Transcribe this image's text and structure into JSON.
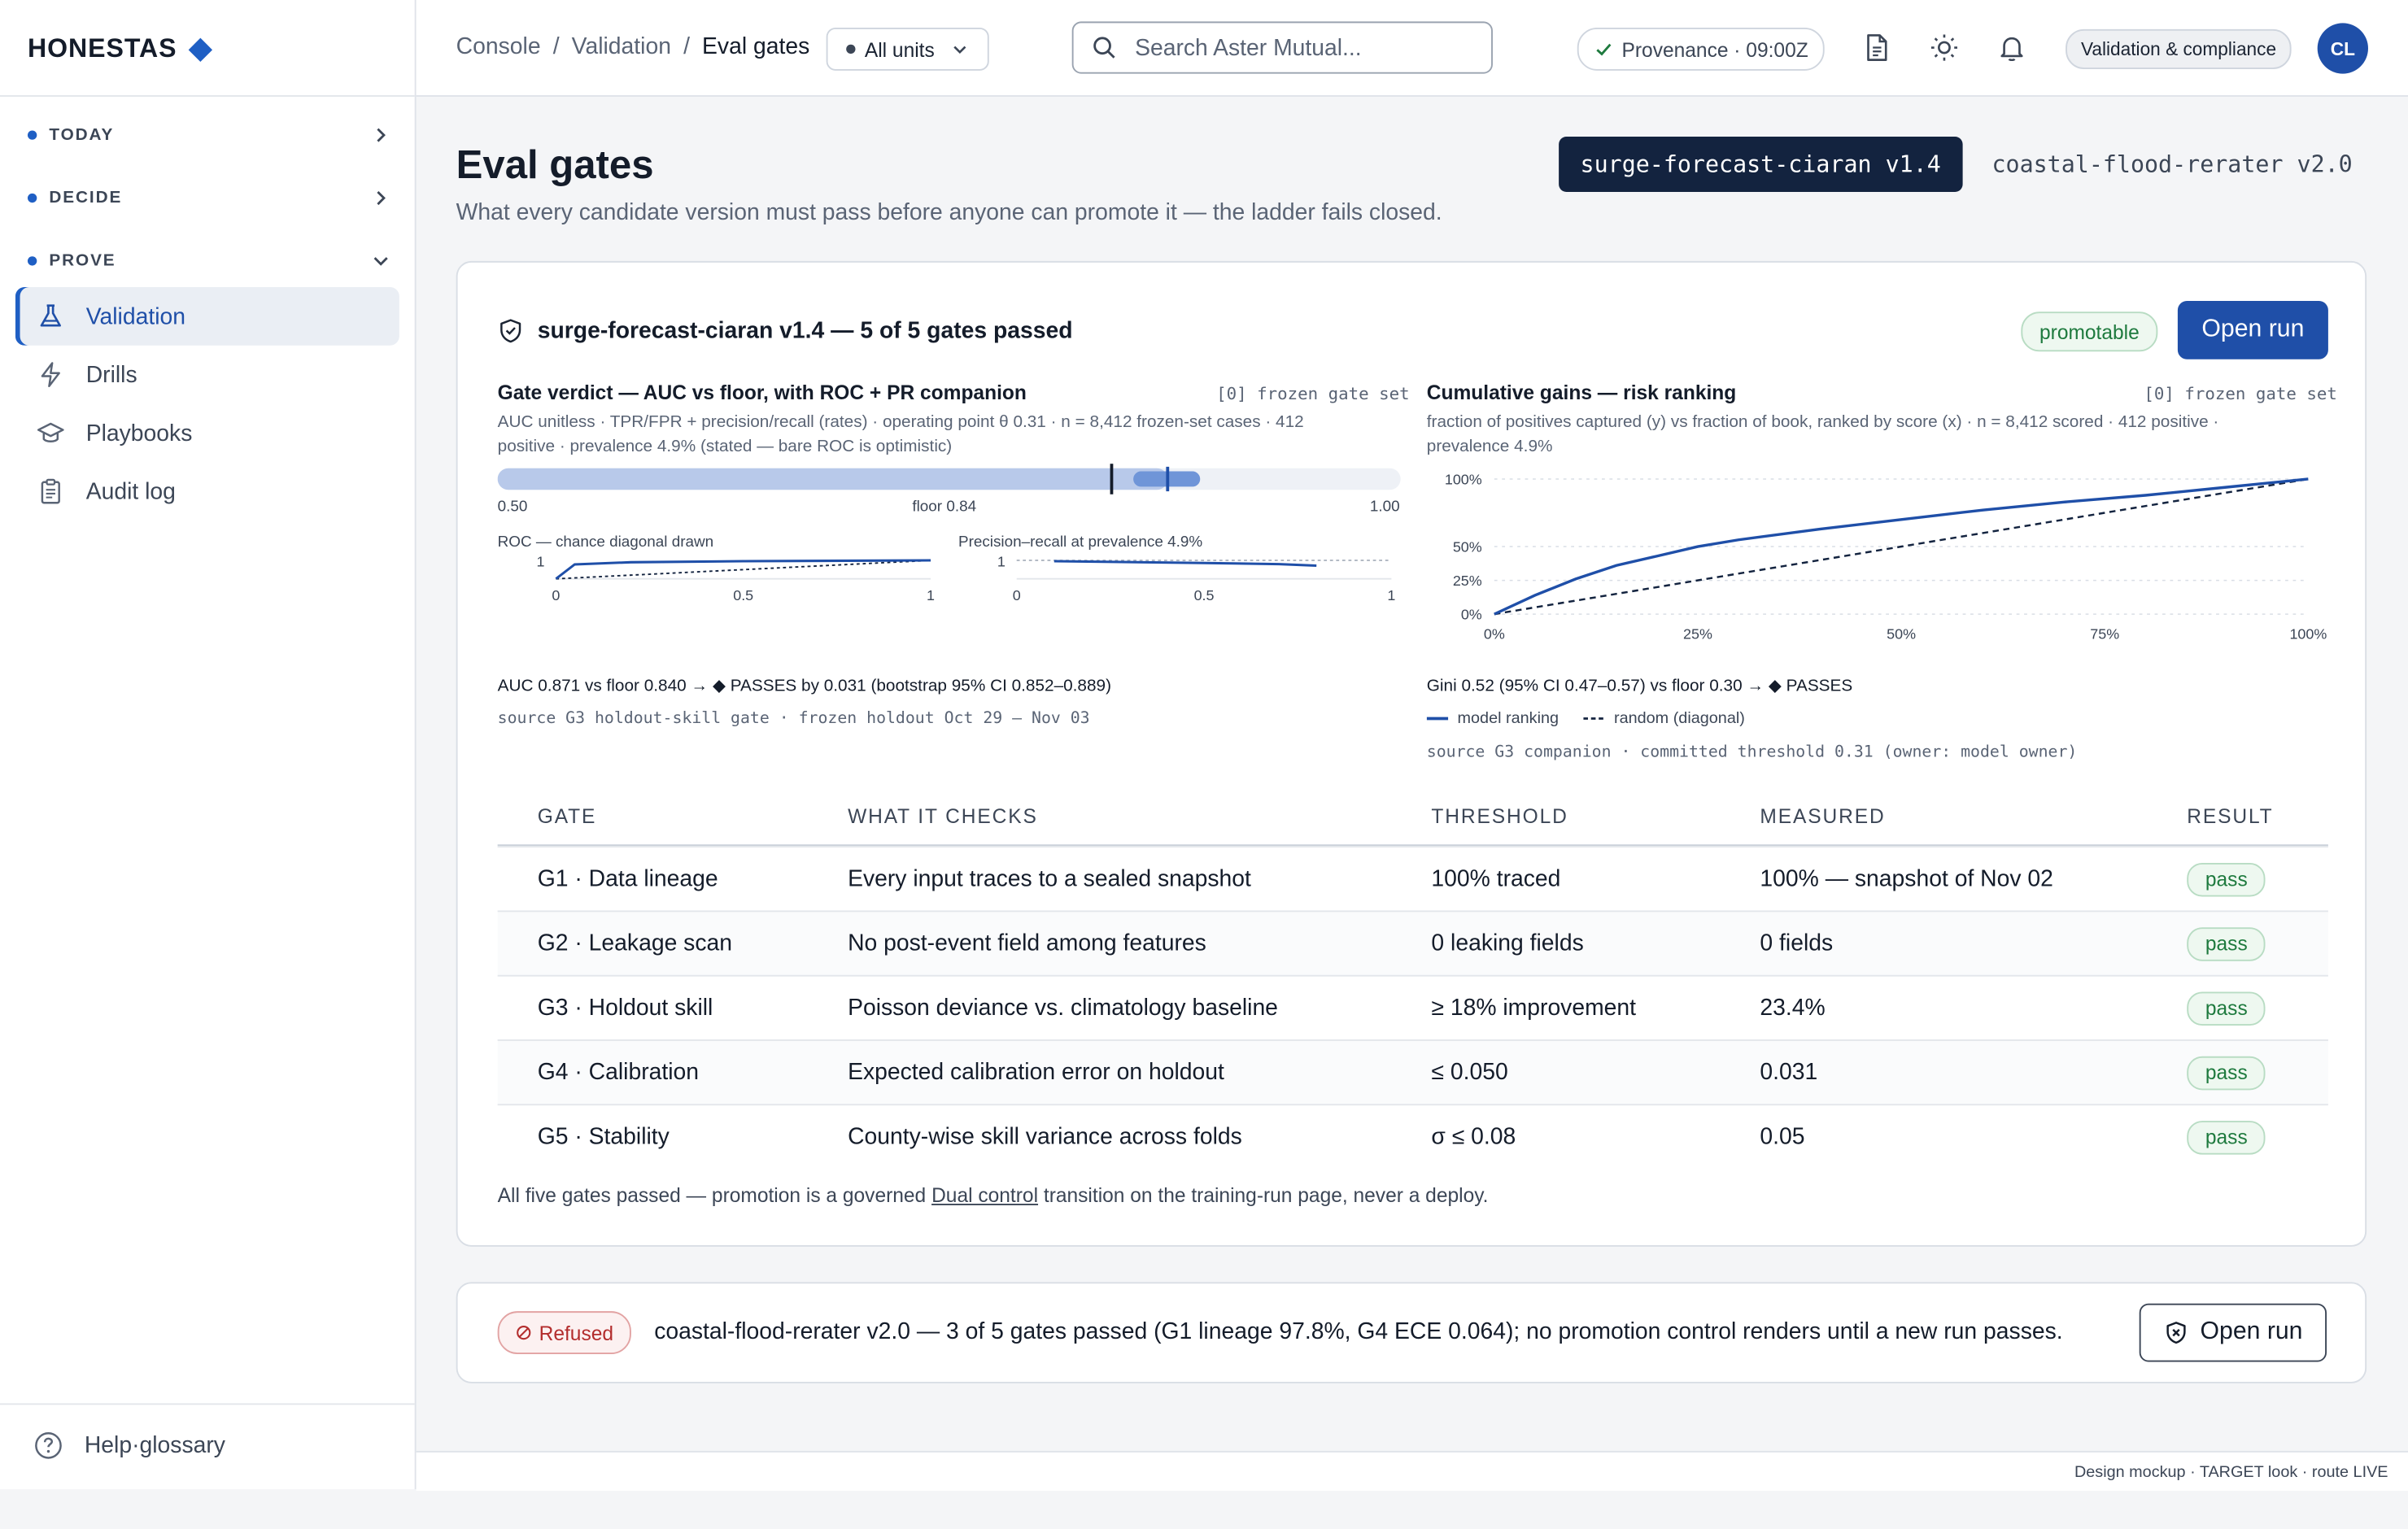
{
  "brand": {
    "name": "HONESTAS"
  },
  "sidebar": {
    "sections": [
      {
        "label": "TODAY"
      },
      {
        "label": "DECIDE"
      },
      {
        "label": "PROVE"
      }
    ],
    "items": [
      {
        "label": "Validation",
        "icon": "flask-icon"
      },
      {
        "label": "Drills",
        "icon": "bolt-icon"
      },
      {
        "label": "Playbooks",
        "icon": "graduation-cap-icon"
      },
      {
        "label": "Audit log",
        "icon": "clipboard-icon"
      }
    ],
    "help_label": "Help·glossary"
  },
  "header": {
    "breadcrumb": [
      "Console",
      "Validation",
      "Eval gates"
    ],
    "units_label": "All units",
    "search_placeholder": "Search Aster Mutual...",
    "provenance": "Provenance · 09:00Z",
    "role_badge": "Validation & compliance",
    "avatar_initials": "CL"
  },
  "page": {
    "title": "Eval gates",
    "subtitle": "What every candidate version must pass before anyone can promote it — the ladder fails closed.",
    "version_tabs": [
      "surge-forecast-ciaran v1.4",
      "coastal-flood-rerater v2.0"
    ]
  },
  "main_card": {
    "title": "surge-forecast-ciaran v1.4 — 5 of 5 gates passed",
    "badge": "promotable",
    "open_run": "Open run",
    "left_panel": {
      "title": "Gate verdict — AUC vs floor, with ROC + PR companion",
      "tag": "[0] frozen gate set",
      "meta": "AUC unitless · TPR/FPR + precision/recall (rates) · operating point θ 0.31 · n = 8,412 frozen-set cases · 412 positive · prevalence 4.9% (stated — bare ROC is optimistic)",
      "scale_min": "0.50",
      "scale_floor_label": "floor 0.84",
      "scale_max": "1.00",
      "roc_label": "ROC — chance diagonal drawn",
      "pr_label": "Precision–recall at prevalence 4.9%",
      "verdict": "AUC 0.871 vs floor 0.840 → ◆ PASSES by 0.031 (bootstrap 95% CI 0.852–0.889)",
      "source": "source G3 holdout-skill gate · frozen holdout Oct 29 — Nov 03"
    },
    "right_panel": {
      "title": "Cumulative gains — risk ranking",
      "tag": "[0] frozen gate set",
      "meta": "fraction of positives captured (y) vs fraction of book, ranked by score (x) · n = 8,412 scored · 412 positive · prevalence 4.9%",
      "verdict": "Gini 0.52 (95% CI 0.47–0.57) vs floor 0.30 → ◆ PASSES",
      "legend_model": "model ranking",
      "legend_random": "random (diagonal)",
      "source": "source G3 companion · committed threshold 0.31 (owner: model owner)"
    },
    "table": {
      "headers": [
        "GATE",
        "WHAT IT CHECKS",
        "THRESHOLD",
        "MEASURED",
        "RESULT"
      ],
      "rows": [
        [
          "G1 · Data lineage",
          "Every input traces to a sealed snapshot",
          "100% traced",
          "100% — snapshot of Nov 02",
          "pass"
        ],
        [
          "G2 · Leakage scan",
          "No post-event field among features",
          "0 leaking fields",
          "0 fields",
          "pass"
        ],
        [
          "G3 · Holdout skill",
          "Poisson deviance vs. climatology baseline",
          "≥ 18% improvement",
          "23.4%",
          "pass"
        ],
        [
          "G4 · Calibration",
          "Expected calibration error on holdout",
          "≤ 0.050",
          "0.031",
          "pass"
        ],
        [
          "G5 · Stability",
          "County-wise skill variance across folds",
          "σ ≤ 0.08",
          "0.05",
          "pass"
        ]
      ]
    },
    "footnote_pre": "All five gates passed — promotion is a governed",
    "footnote_link": "Dual control",
    "footnote_post": "transition on the training-run page, never a deploy."
  },
  "refused_card": {
    "badge": "Refused",
    "text": "coastal-flood-rerater v2.0 — 3 of 5 gates passed (G1 lineage 97.8%, G4 ECE 0.064); no promotion control renders until a new run passes.",
    "open_run": "Open run"
  },
  "footer": "Design mockup · TARGET look · route LIVE",
  "colors": {
    "accent": "#1f4fa8",
    "pass": "#1e7a3e",
    "refused": "#b32d2d"
  },
  "chart_data": [
    {
      "type": "bar",
      "role": "auc-gauge",
      "xlim": [
        0.5,
        1.0
      ],
      "value": 0.871,
      "floor": 0.84,
      "ci": [
        0.852,
        0.889
      ],
      "tick_labels": [
        "0.50",
        "floor 0.84",
        "1.00"
      ]
    },
    {
      "type": "line",
      "role": "roc",
      "title": "ROC — chance diagonal drawn",
      "x_ticks": [
        "0",
        "0.5",
        "1"
      ],
      "y_ticks": [
        "1"
      ],
      "x": [
        0,
        0.05,
        0.2,
        0.5,
        1
      ],
      "y": [
        0,
        0.78,
        0.9,
        0.96,
        1
      ],
      "diagonal": true
    },
    {
      "type": "line",
      "role": "precision-recall",
      "title": "Precision–recall at prevalence 4.9%",
      "x_ticks": [
        "0",
        "0.5",
        "1"
      ],
      "y_ticks": [
        "1"
      ],
      "x": [
        0.1,
        0.3,
        0.5,
        0.7,
        0.8
      ],
      "y": [
        0.96,
        0.91,
        0.86,
        0.8,
        0.72
      ]
    },
    {
      "type": "line",
      "role": "cumulative-gains",
      "title": "Cumulative gains — risk ranking",
      "x_ticks": [
        "0%",
        "25%",
        "50%",
        "75%",
        "100%"
      ],
      "y_ticks": [
        "0%",
        "25%",
        "50%",
        "100%"
      ],
      "xlim": [
        0,
        100
      ],
      "ylim": [
        0,
        100
      ],
      "series": [
        {
          "name": "model ranking",
          "x": [
            0,
            5,
            10,
            15,
            20,
            25,
            30,
            40,
            50,
            60,
            70,
            80,
            90,
            100
          ],
          "y": [
            0,
            14,
            26,
            36,
            43,
            50,
            55,
            63,
            70,
            77,
            83,
            88,
            94,
            100
          ]
        },
        {
          "name": "random (diagonal)",
          "x": [
            0,
            100
          ],
          "y": [
            0,
            100
          ]
        }
      ]
    }
  ]
}
